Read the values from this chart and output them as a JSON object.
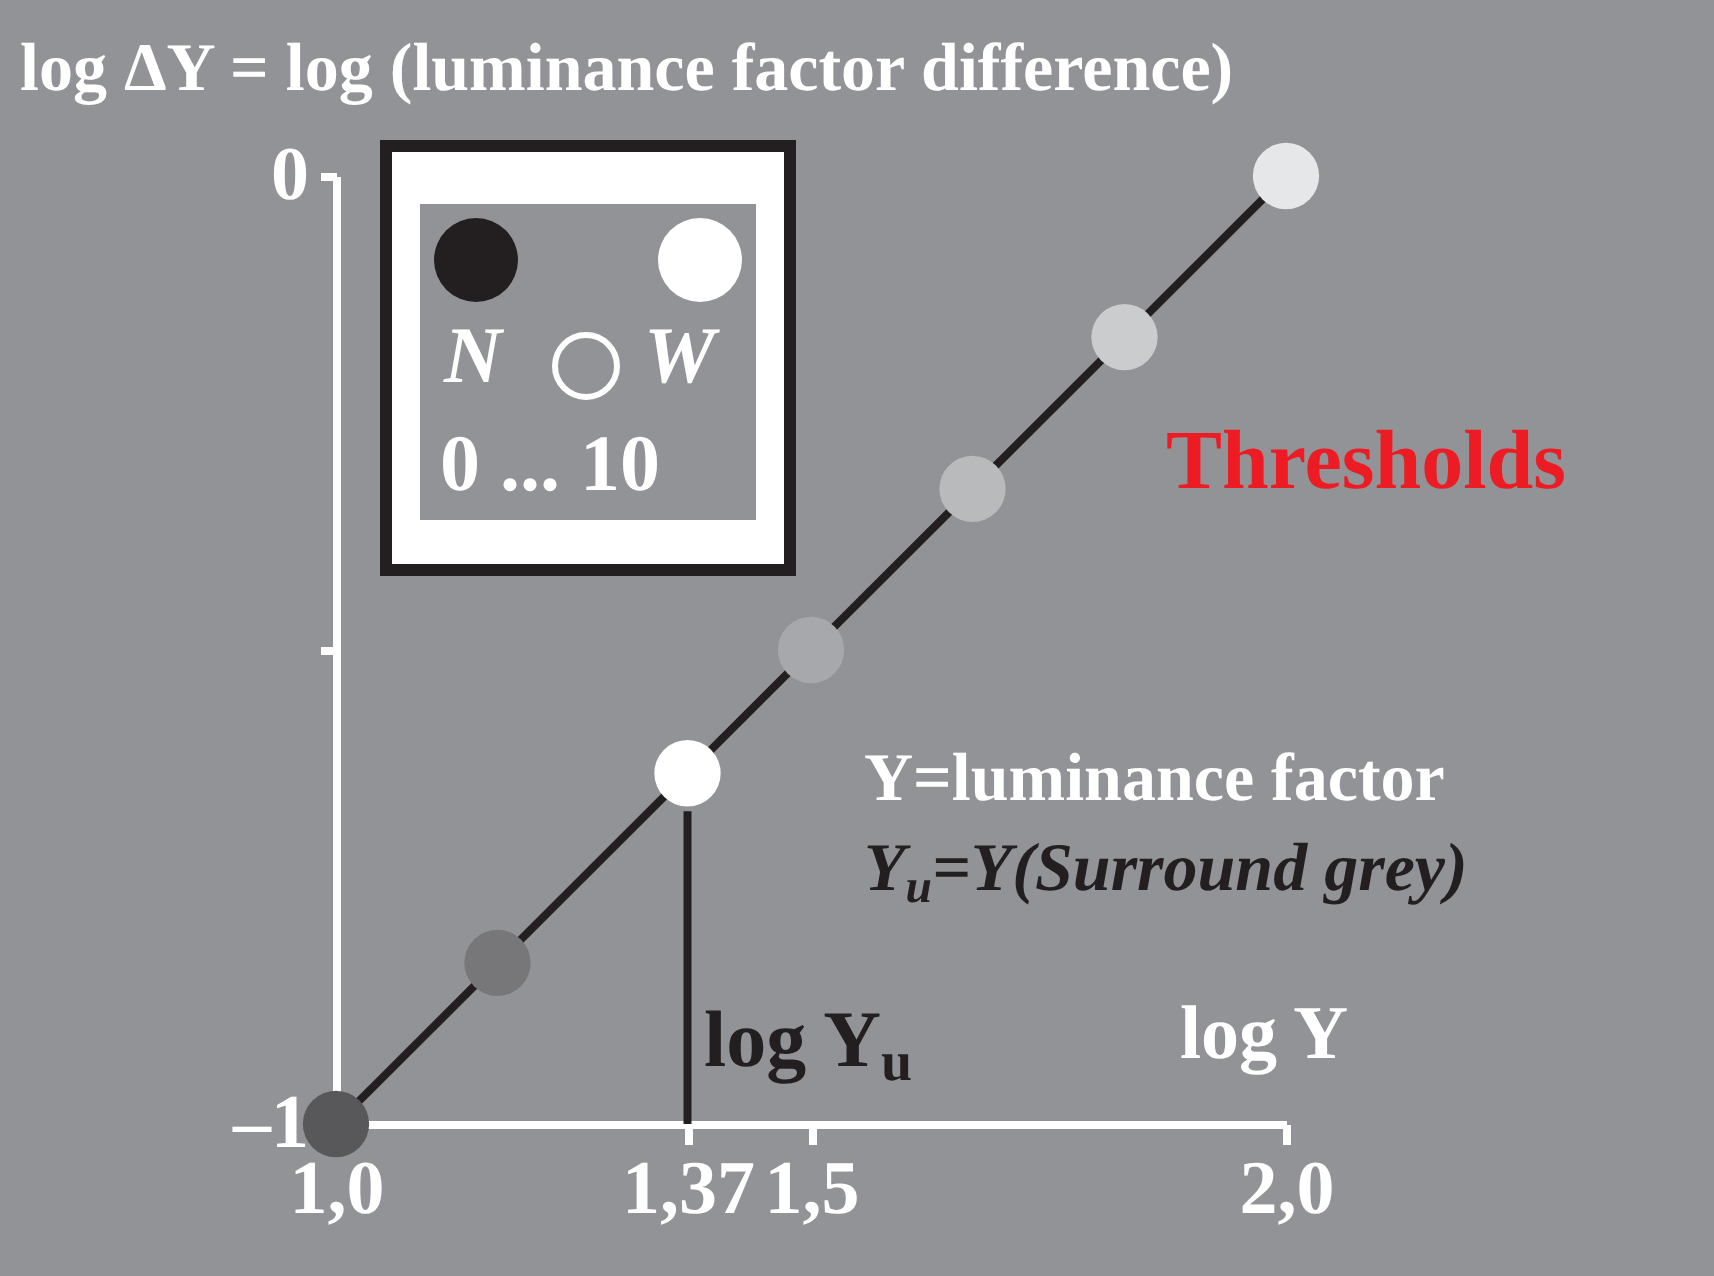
{
  "chart_data": {
    "type": "scatter",
    "title": "log ΔY = log (luminance factor difference)",
    "xlabel": "log Y",
    "annotations": [
      "Thresholds",
      "Y=luminance factor",
      "Y$_{u}$=Y(Surround grey)",
      "log Y$_{u}$",
      "N",
      "W",
      "0 ... 10"
    ],
    "series": [
      {
        "type": "line",
        "color": "#231f20",
        "x": [
          1.0,
          2.0
        ],
        "values": [
          -1,
          0
        ]
      },
      {
        "type": "line",
        "color": "#231f20",
        "x": [
          1.37,
          1.37
        ],
        "values": [
          -1,
          -0.67
        ]
      },
      {
        "marker": "circle",
        "x": [
          1.0,
          1.17,
          1.37,
          1.5,
          1.67,
          1.83,
          2.0
        ],
        "values": [
          -1,
          -0.83,
          -0.63,
          -0.5,
          -0.33,
          -0.17,
          0
        ],
        "colors": [
          "#58585a",
          "#77777a",
          "#ffffff",
          "#a7a8ab",
          "#b9babc",
          "#cbccce",
          "#e6e7e8"
        ]
      }
    ],
    "xlim": [
      1.0,
      2.0
    ],
    "ylim": [
      -1,
      0
    ],
    "xticks": [
      {
        "value": 1.0,
        "label": "1,0"
      },
      {
        "value": 1.37,
        "label": "1,37"
      },
      {
        "value": 1.5,
        "label": "1,5"
      },
      {
        "value": 2.0,
        "label": "2,0"
      }
    ],
    "yticks": [
      0,
      {
        "value": -0.5,
        "label": null
      },
      {
        "value": -1,
        "label": "–1"
      }
    ]
  }
}
